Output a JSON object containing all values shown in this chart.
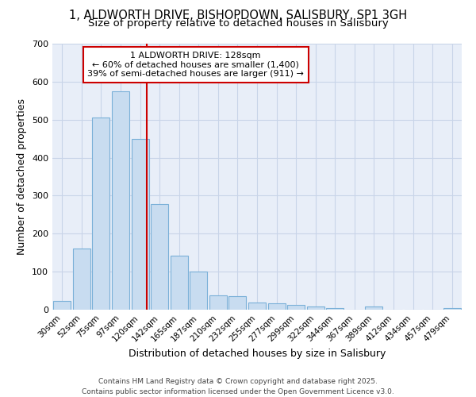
{
  "title_line1": "1, ALDWORTH DRIVE, BISHOPDOWN, SALISBURY, SP1 3GH",
  "title_line2": "Size of property relative to detached houses in Salisbury",
  "xlabel": "Distribution of detached houses by size in Salisbury",
  "ylabel": "Number of detached properties",
  "bar_labels": [
    "30sqm",
    "52sqm",
    "75sqm",
    "97sqm",
    "120sqm",
    "142sqm",
    "165sqm",
    "187sqm",
    "210sqm",
    "232sqm",
    "255sqm",
    "277sqm",
    "299sqm",
    "322sqm",
    "344sqm",
    "367sqm",
    "389sqm",
    "412sqm",
    "434sqm",
    "457sqm",
    "479sqm"
  ],
  "bar_values": [
    22,
    160,
    505,
    575,
    450,
    278,
    143,
    100,
    38,
    35,
    18,
    17,
    12,
    9,
    4,
    0,
    8,
    0,
    0,
    0,
    5
  ],
  "bar_color": "#c8dcf0",
  "bar_edge_color": "#7ab0d8",
  "ylim": [
    0,
    700
  ],
  "yticks": [
    0,
    100,
    200,
    300,
    400,
    500,
    600,
    700
  ],
  "annotation_text": "1 ALDWORTH DRIVE: 128sqm\n← 60% of detached houses are smaller (1,400)\n39% of semi-detached houses are larger (911) →",
  "vline_x_index": 4.35,
  "vline_color": "#cc0000",
  "annotation_box_color": "#ffffff",
  "annotation_box_edge": "#cc0000",
  "grid_color": "#c8d4e8",
  "background_color": "#ffffff",
  "plot_bg_color": "#e8eef8",
  "footer_text": "Contains HM Land Registry data © Crown copyright and database right 2025.\nContains public sector information licensed under the Open Government Licence v3.0.",
  "title_fontsize": 10.5,
  "subtitle_fontsize": 9.5,
  "tick_fontsize": 7.5,
  "ylabel_fontsize": 9,
  "xlabel_fontsize": 9,
  "footer_fontsize": 6.5
}
